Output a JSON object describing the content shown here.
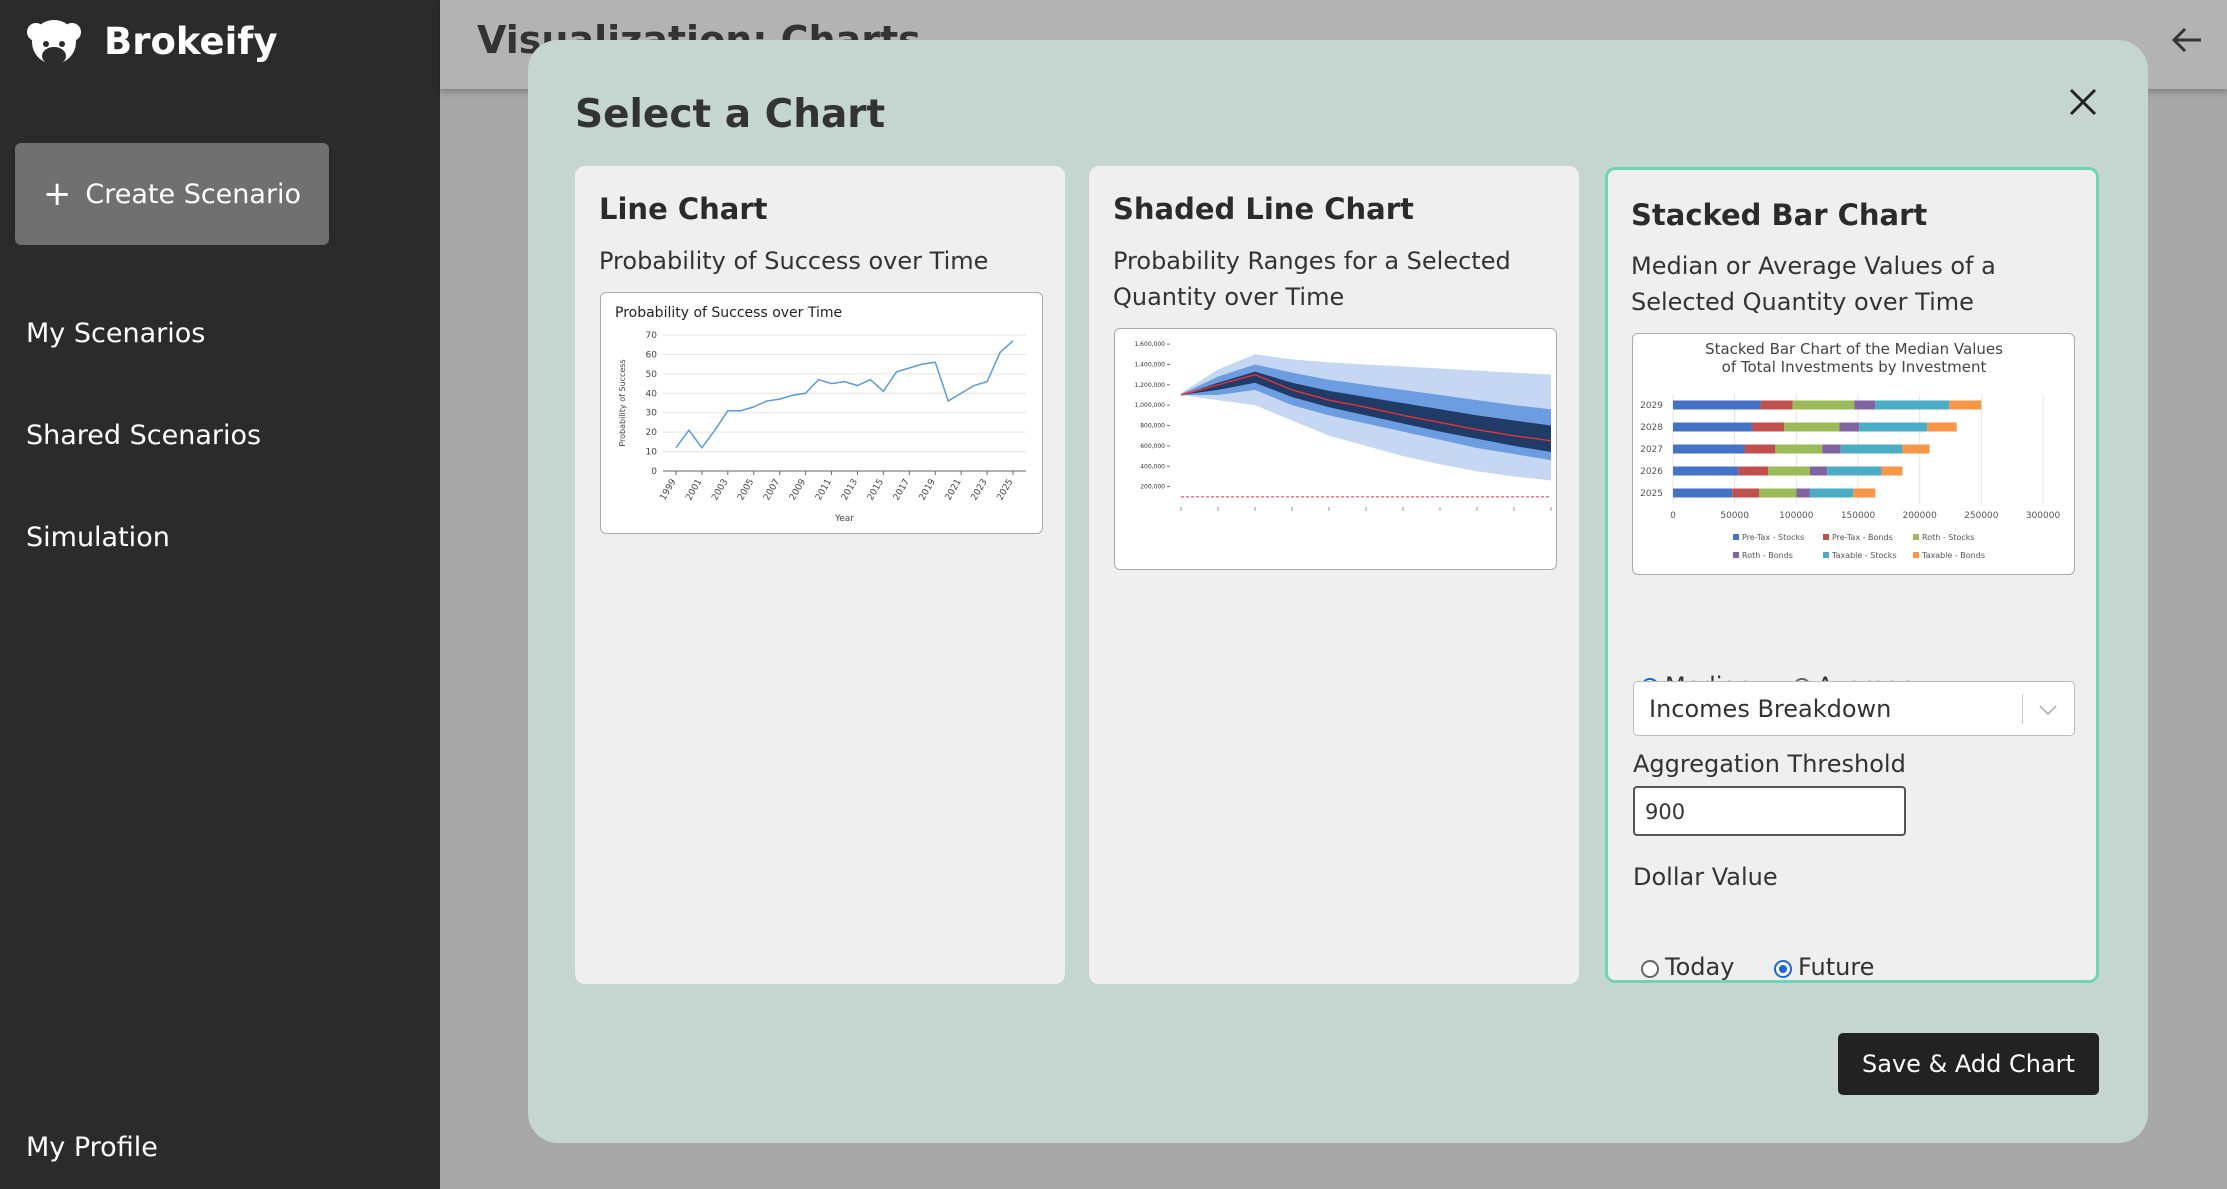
{
  "sidebar": {
    "brand": "Brokeify",
    "create_button": "Create Scenario",
    "nav": [
      "My Scenarios",
      "Shared Scenarios",
      "Simulation"
    ],
    "profile": "My Profile"
  },
  "header": {
    "title": "Visualization: Charts"
  },
  "modal": {
    "title": "Select a Chart",
    "save_button": "Save & Add Chart",
    "cards": [
      {
        "title": "Line Chart",
        "description": "Probability of Success over Time"
      },
      {
        "title": "Shaded Line Chart",
        "description": "Probability Ranges for a Selected Quantity over Time"
      },
      {
        "title": "Stacked Bar Chart",
        "description": "Median or Average Values of a Selected Quantity over Time"
      }
    ],
    "options": {
      "statistic": {
        "choices": [
          "Median",
          "Average"
        ],
        "selected": 0
      },
      "quantity": "Incomes Breakdown",
      "threshold_label": "Aggregation Threshold",
      "threshold_value": "900",
      "dollar_label": "Dollar Value",
      "dollar": {
        "choices": [
          "Today",
          "Future"
        ],
        "selected": 1
      }
    }
  },
  "thumbnails": [
    {
      "chart_data": {
        "type": "line",
        "title": "Probability of Success over Time",
        "x_label": "Year",
        "y_label": "Probability of Success",
        "color": "#5b9bd5",
        "x": [
          1999,
          2000,
          2001,
          2002,
          2003,
          2004,
          2005,
          2006,
          2007,
          2008,
          2009,
          2010,
          2011,
          2012,
          2013,
          2014,
          2015,
          2016,
          2017,
          2018,
          2019,
          2020,
          2021,
          2022,
          2023,
          2024,
          2025
        ],
        "values": [
          12,
          21,
          12,
          21,
          31,
          31,
          33,
          36,
          37,
          39,
          40,
          47,
          45,
          46,
          44,
          47,
          41,
          51,
          53,
          55,
          56,
          36,
          40,
          44,
          46,
          61,
          67
        ],
        "xlim": [
          1998,
          2026
        ],
        "xticks": [
          1999,
          2001,
          2003,
          2005,
          2007,
          2009,
          2011,
          2013,
          2015,
          2017,
          2019,
          2021,
          2023,
          2025
        ],
        "ylim": [
          0,
          70
        ],
        "yticks": [
          0,
          10,
          20,
          30,
          40,
          50,
          60,
          70
        ],
        "grid": true
      }
    },
    {
      "chart_data": {
        "type": "fan",
        "categories": [
          null,
          null,
          null,
          null,
          null,
          null,
          null,
          null,
          null,
          null,
          null
        ],
        "ylim": [
          0,
          1650000
        ],
        "yticks": [
          {
            "value": 200000,
            "label": "200,000"
          },
          {
            "value": 400000,
            "label": "400,000"
          },
          {
            "value": 600000,
            "label": "600,000"
          },
          {
            "value": 800000,
            "label": "800,000"
          },
          {
            "value": 1000000,
            "label": "1,000,000"
          },
          {
            "value": 1200000,
            "label": "1,200,000"
          },
          {
            "value": 1400000,
            "label": "1,400,000"
          },
          {
            "value": 1600000,
            "label": "1,600,000"
          }
        ],
        "bands": [
          {
            "color": "#c5d7f2",
            "lo": [
              1100000,
              1050000,
              1000000,
              850000,
              700000,
              600000,
              500000,
              420000,
              350000,
              300000,
              260000
            ],
            "hi": [
              1120000,
              1350000,
              1500000,
              1450000,
              1420000,
              1400000,
              1380000,
              1360000,
              1340000,
              1320000,
              1300000
            ]
          },
          {
            "color": "#6c9de0",
            "lo": [
              1100000,
              1100000,
              1150000,
              1000000,
              900000,
              820000,
              740000,
              660000,
              580000,
              520000,
              460000
            ],
            "hi": [
              1110000,
              1280000,
              1400000,
              1320000,
              1250000,
              1200000,
              1150000,
              1100000,
              1050000,
              1000000,
              960000
            ]
          },
          {
            "color": "#1f3b66",
            "lo": [
              1100000,
              1150000,
              1220000,
              1080000,
              980000,
              900000,
              820000,
              740000,
              670000,
              600000,
              540000
            ],
            "hi": [
              1100000,
              1220000,
              1330000,
              1220000,
              1140000,
              1080000,
              1020000,
              960000,
              900000,
              850000,
              800000
            ]
          }
        ],
        "median": {
          "color": "#d9343b",
          "values": [
            1100000,
            1200000,
            1300000,
            1150000,
            1050000,
            980000,
            900000,
            830000,
            760000,
            700000,
            650000
          ]
        },
        "threshold": {
          "color": "#d9343b",
          "value": 100000
        }
      }
    },
    {
      "chart_data": {
        "type": "hbar-stacked",
        "title": [
          "Stacked Bar Chart of the Median Values",
          "of Total  Investments by Investment"
        ],
        "categories": [
          "2029",
          "2028",
          "2027",
          "2026",
          "2025"
        ],
        "xlim": [
          0,
          300000
        ],
        "xticks": [
          0,
          50000,
          100000,
          150000,
          200000,
          250000,
          300000
        ],
        "grid": true,
        "series": [
          {
            "name": "Pre-Tax - Stocks",
            "color": "#4472c4",
            "values": [
              71000,
              64000,
              58000,
              53000,
              48000
            ]
          },
          {
            "name": "Pre-Tax - Bonds",
            "color": "#c0504d",
            "values": [
              26000,
              26000,
              25000,
              24000,
              22000
            ]
          },
          {
            "name": "Roth - Stocks",
            "color": "#9bbb59",
            "values": [
              50000,
              45000,
              38000,
              34000,
              30000
            ]
          },
          {
            "name": "Roth - Bonds",
            "color": "#8064a2",
            "values": [
              17000,
              16000,
              15000,
              14000,
              11000
            ]
          },
          {
            "name": "Taxable - Stocks",
            "color": "#4bacc6",
            "values": [
              60000,
              55000,
              50000,
              44000,
              35000
            ]
          },
          {
            "name": "Taxable - Bonds",
            "color": "#f79646",
            "values": [
              26000,
              24000,
              22000,
              17000,
              18000
            ]
          }
        ]
      }
    }
  ]
}
